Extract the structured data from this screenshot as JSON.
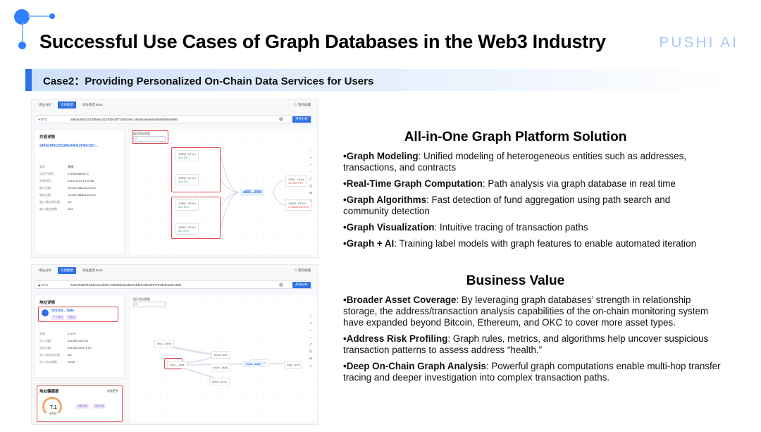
{
  "header": {
    "title": "Successful Use Cases of Graph Databases in the Web3 Industry",
    "brand": "PUSHI AI"
  },
  "case": {
    "label": "Case2：Providing Personalized On-Chain Data Services for Users"
  },
  "shot1": {
    "tabs": [
      "地址分析",
      "交易图谱",
      "地址图谱 Beta"
    ],
    "active_tab": 1,
    "favorites": "☆ 我的收藏",
    "coin": "● BTC",
    "hash": "a893e39412013​0be6431254bc5b7184b35ec14eb6c86ea86ad5e5055e3966",
    "analyze_btn": "开始分析",
    "detail_title": "交易详情",
    "detail_hash": "a893e394120130be6431254bc5b7...",
    "rows": [
      {
        "k": "类型",
        "v": "普通"
      },
      {
        "k": "交易手续费",
        "v": "0.00000889 BTC"
      },
      {
        "k": "交易时间",
        "v": "2019-05-09 10:09:58"
      },
      {
        "k": "输入金额",
        "v": "15,002.98612123 BTC"
      },
      {
        "k": "输出金额",
        "v": "15,002.98655134 BTC"
      },
      {
        "k": "输入/输出地址数",
        "v": "1/2"
      },
      {
        "k": "输入/输出笔数",
        "v": "40/2"
      }
    ],
    "filter_label": "展开地址数量",
    "filter_value": "2",
    "nodes_left": [
      {
        "addr": "14BW...bTVm",
        "amt": "833 BTC"
      },
      {
        "addr": "14BW...bTVm",
        "amt": "833 BTC"
      },
      {
        "addr": "14BW...bTVm",
        "amt": "833 BTC"
      },
      {
        "addr": "14BW...bTVm",
        "amt": "611 BTC"
      }
    ],
    "center": "a893...3966",
    "nodes_right": [
      {
        "addr": "1PBx...7hxH",
        "amt": "15,000 BTC"
      },
      {
        "addr": "14BW...bTVm",
        "amt": "2.98655134 BTC"
      }
    ],
    "tools": [
      "⛶",
      "4",
      "+",
      "−",
      "⤢",
      "⊡",
      "⊞",
      "⤓"
    ]
  },
  "shot2": {
    "tabs": [
      "地址分析",
      "交易图谱",
      "地址图谱 Beta"
    ],
    "active_tab": 1,
    "favorites": "☆ 我的收藏",
    "coin": "◆ ETH",
    "hash": "0x0e76d6f7181dea1eeb6c17e8bb6fa3ceb2424d31cddc80177673efea83c1983",
    "analyze_btn": "开始分析",
    "detail_title": "地址详情",
    "addr": "0x510e...7ade",
    "addr_tags": [
      "个人钱包",
      "已核实"
    ],
    "rows": [
      {
        "k": "余额",
        "v": "0 ETH"
      },
      {
        "k": "流入总额",
        "v": "445,500.00 ETH"
      },
      {
        "k": "流出总额",
        "v": "445,000.0010 ETH"
      },
      {
        "k": "流入/流出地址数",
        "v": "5/6"
      },
      {
        "k": "流入/流出笔数",
        "v": "20/26"
      }
    ],
    "risk_title": "地址健康度",
    "risk_more": "查看更多",
    "score": "7.1",
    "score_label": "低风险",
    "risk_tags": [
      "大额交易",
      "活跃交易"
    ],
    "filter_label": "展开地址数量",
    "filter_value": "2",
    "graph_nodes": [
      "0x4c...5e4c",
      "0x51...7ade",
      "0x4a...ad9",
      "0xab...8d7",
      "0x5a...d7c4",
      "0x5e...f3d8",
      "0x0a...3962",
      "0x4f...3c7f"
    ]
  },
  "solution": {
    "heading": "All-in-One Graph Platform Solution",
    "items": [
      {
        "term": "•Graph Modeling",
        "text": ": Unified modeling of heterogeneous entities such as addresses, transactions, and contracts"
      },
      {
        "term": "•Real-Time Graph Computation",
        "text": ": Path analysis via graph database in real time"
      },
      {
        "term": "•Graph Algorithms",
        "text": ": Fast detection of fund aggregation using path search and community detection"
      },
      {
        "term": "•Graph Visualization",
        "text": ": Intuitive tracing of transaction paths"
      },
      {
        "term": "•Graph + AI",
        "text": ": Training label models with graph features to enable automated iteration"
      }
    ]
  },
  "value": {
    "heading": "Business Value",
    "items": [
      {
        "term": "•Broader Asset Coverage",
        "text": ": By leveraging graph databases’ strength in relationship storage, the address/transaction analysis capabilities of the on-chain monitoring system have expanded beyond Bitcoin, Ethereum, and OKC to cover more asset types."
      },
      {
        "term": "•Address Risk Profiling",
        "text": ": Graph rules, metrics, and algorithms help uncover suspicious transaction patterns to assess address “health.”"
      },
      {
        "term": "•Deep On-Chain Graph Analysis",
        "text": ": Powerful graph computations enable multi-hop transfer tracing and deeper investigation into complex transaction paths."
      }
    ]
  },
  "colors": {
    "accent": "#2f6fe8",
    "highlight": "#e0484f",
    "brand": "#a9c7f3"
  }
}
